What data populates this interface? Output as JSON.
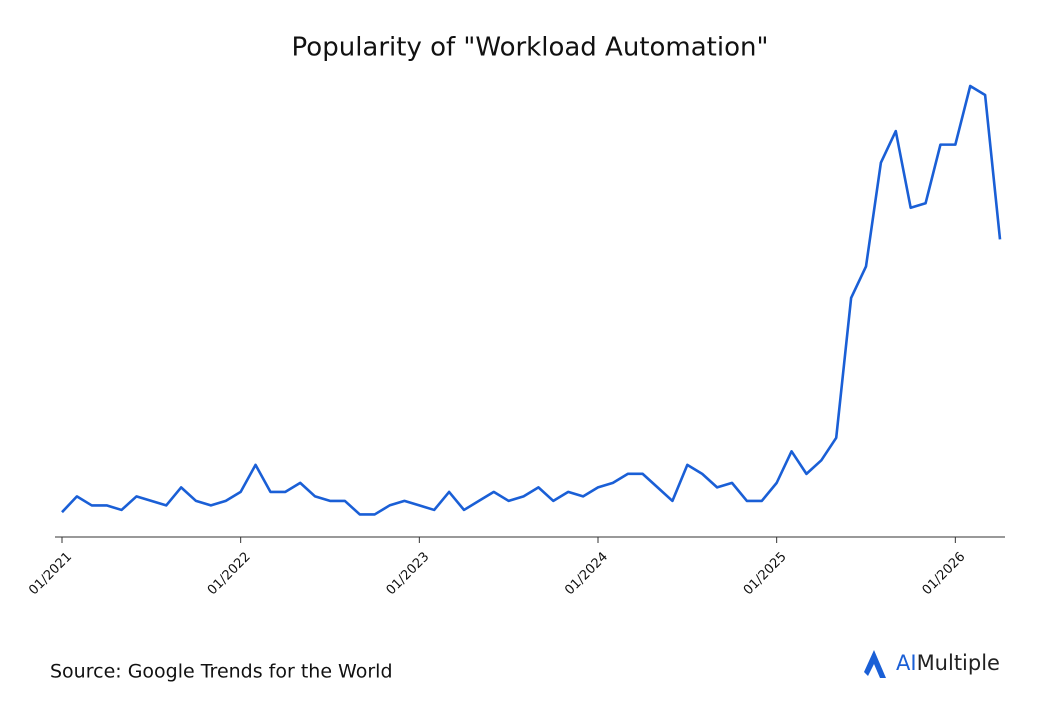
{
  "chart_data": {
    "type": "line",
    "title": "Popularity of \"Workload Automation\"",
    "categories": [
      "01/2021",
      null,
      null,
      null,
      null,
      null,
      null,
      null,
      null,
      null,
      null,
      null,
      "01/2022",
      null,
      null,
      null,
      null,
      null,
      null,
      null,
      null,
      null,
      null,
      null,
      "01/2023",
      null,
      null,
      null,
      null,
      null,
      null,
      null,
      null,
      null,
      null,
      null,
      "01/2024",
      null,
      null,
      null,
      null,
      null,
      null,
      null,
      null,
      null,
      null,
      null,
      "01/2025",
      null,
      null,
      null,
      null,
      null,
      null,
      null,
      null,
      null,
      null,
      null,
      "01/2026",
      null,
      null,
      null
    ],
    "values": [
      5.5,
      9,
      7,
      7,
      6,
      9,
      8,
      7,
      11,
      8,
      7,
      8,
      10,
      16,
      10,
      10,
      12,
      9,
      8,
      8,
      5,
      5,
      7,
      8,
      7,
      6,
      10,
      6,
      8,
      10,
      8,
      9,
      11,
      8,
      10,
      9,
      11,
      12,
      14,
      14,
      11,
      8,
      16,
      14,
      11,
      12,
      8,
      8,
      12,
      19,
      14,
      17,
      22,
      53,
      60,
      83,
      90,
      73,
      74,
      87,
      87,
      100,
      98,
      66
    ],
    "color": "#1a5fd6",
    "ylim": [
      0,
      100
    ],
    "source": "Source: Google Trends for the World",
    "logo": {
      "prefix": "AI",
      "text": "Multiple"
    }
  }
}
